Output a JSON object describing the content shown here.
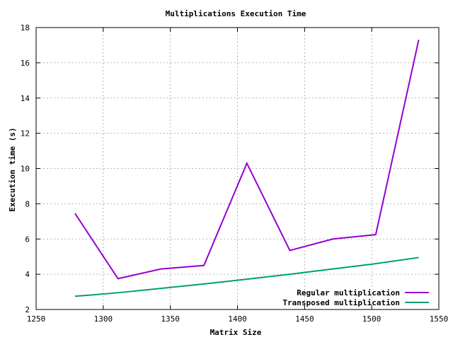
{
  "chart_data": {
    "type": "line",
    "title": "Multiplications Execution Time",
    "xlabel": "Matrix Size",
    "ylabel": "Execution time (s)",
    "xlim": [
      1250,
      1550
    ],
    "ylim": [
      2,
      18
    ],
    "xticks": [
      1250,
      1300,
      1350,
      1400,
      1450,
      1500,
      1550
    ],
    "yticks": [
      2,
      4,
      6,
      8,
      10,
      12,
      14,
      16,
      18
    ],
    "grid": true,
    "legend_position": "bottom-right",
    "x": [
      1279,
      1311,
      1343,
      1375,
      1407,
      1439,
      1471,
      1503,
      1535
    ],
    "series": [
      {
        "name": "Regular multiplication",
        "color": "#9400d3",
        "values": [
          7.45,
          3.75,
          4.3,
          4.5,
          10.3,
          5.35,
          6.0,
          6.25,
          17.3
        ]
      },
      {
        "name": "Transposed multiplication",
        "color": "#009e73",
        "values": [
          2.75,
          2.95,
          3.2,
          3.45,
          3.72,
          4.0,
          4.3,
          4.6,
          4.95
        ]
      }
    ]
  }
}
